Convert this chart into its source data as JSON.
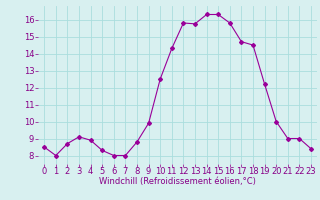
{
  "x": [
    0,
    1,
    2,
    3,
    4,
    5,
    6,
    7,
    8,
    9,
    10,
    11,
    12,
    13,
    14,
    15,
    16,
    17,
    18,
    19,
    20,
    21,
    22,
    23
  ],
  "y": [
    8.5,
    8.0,
    8.7,
    9.1,
    8.9,
    8.3,
    8.0,
    8.0,
    8.8,
    9.9,
    12.5,
    14.3,
    15.8,
    15.75,
    16.3,
    16.3,
    15.8,
    14.7,
    14.5,
    12.2,
    10.0,
    9.0,
    9.0,
    8.4
  ],
  "line_color": "#990099",
  "marker": "D",
  "marker_size": 2,
  "bg_color": "#d8f0f0",
  "grid_color": "#aadddd",
  "xlabel": "Windchill (Refroidissement éolien,°C)",
  "xlabel_color": "#880088",
  "tick_color": "#880088",
  "ylim": [
    7.5,
    16.8
  ],
  "xlim": [
    -0.5,
    23.5
  ],
  "yticks": [
    8,
    9,
    10,
    11,
    12,
    13,
    14,
    15,
    16
  ],
  "xticks": [
    0,
    1,
    2,
    3,
    4,
    5,
    6,
    7,
    8,
    9,
    10,
    11,
    12,
    13,
    14,
    15,
    16,
    17,
    18,
    19,
    20,
    21,
    22,
    23
  ],
  "tick_fontsize": 6,
  "xlabel_fontsize": 6
}
